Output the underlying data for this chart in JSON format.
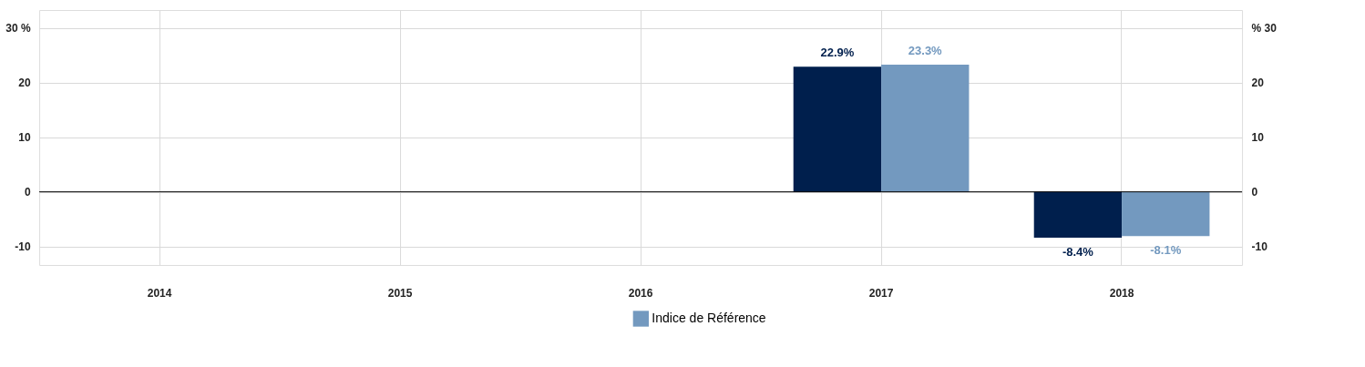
{
  "chart_data": {
    "type": "bar",
    "categories": [
      "2014",
      "2015",
      "2016",
      "2017",
      "2018"
    ],
    "series": [
      {
        "color": "#001f4d",
        "values": [
          null,
          null,
          null,
          22.9,
          -8.4
        ],
        "value_labels": [
          null,
          null,
          null,
          "22.9%",
          "-8.4%"
        ]
      },
      {
        "name": "Indice de Référence",
        "color": "#7399bf",
        "values": [
          null,
          null,
          null,
          23.3,
          -8.1
        ],
        "value_labels": [
          null,
          null,
          null,
          "23.3%",
          "-8.1%"
        ]
      }
    ],
    "ylim": [
      -13.4,
      33.3
    ],
    "yticks": [
      -10,
      0,
      10,
      20,
      {
        "value": 30,
        "label": "30 %"
      }
    ],
    "y2lim": [
      -13.4,
      33.3
    ],
    "y2ticks": [
      -10,
      0,
      10,
      20,
      {
        "value": 30,
        "label": "% 30"
      }
    ],
    "ref_lines": [
      {
        "axis": "y",
        "value": 0,
        "color": "#000000"
      }
    ],
    "grid": true,
    "legend": "bottom"
  }
}
